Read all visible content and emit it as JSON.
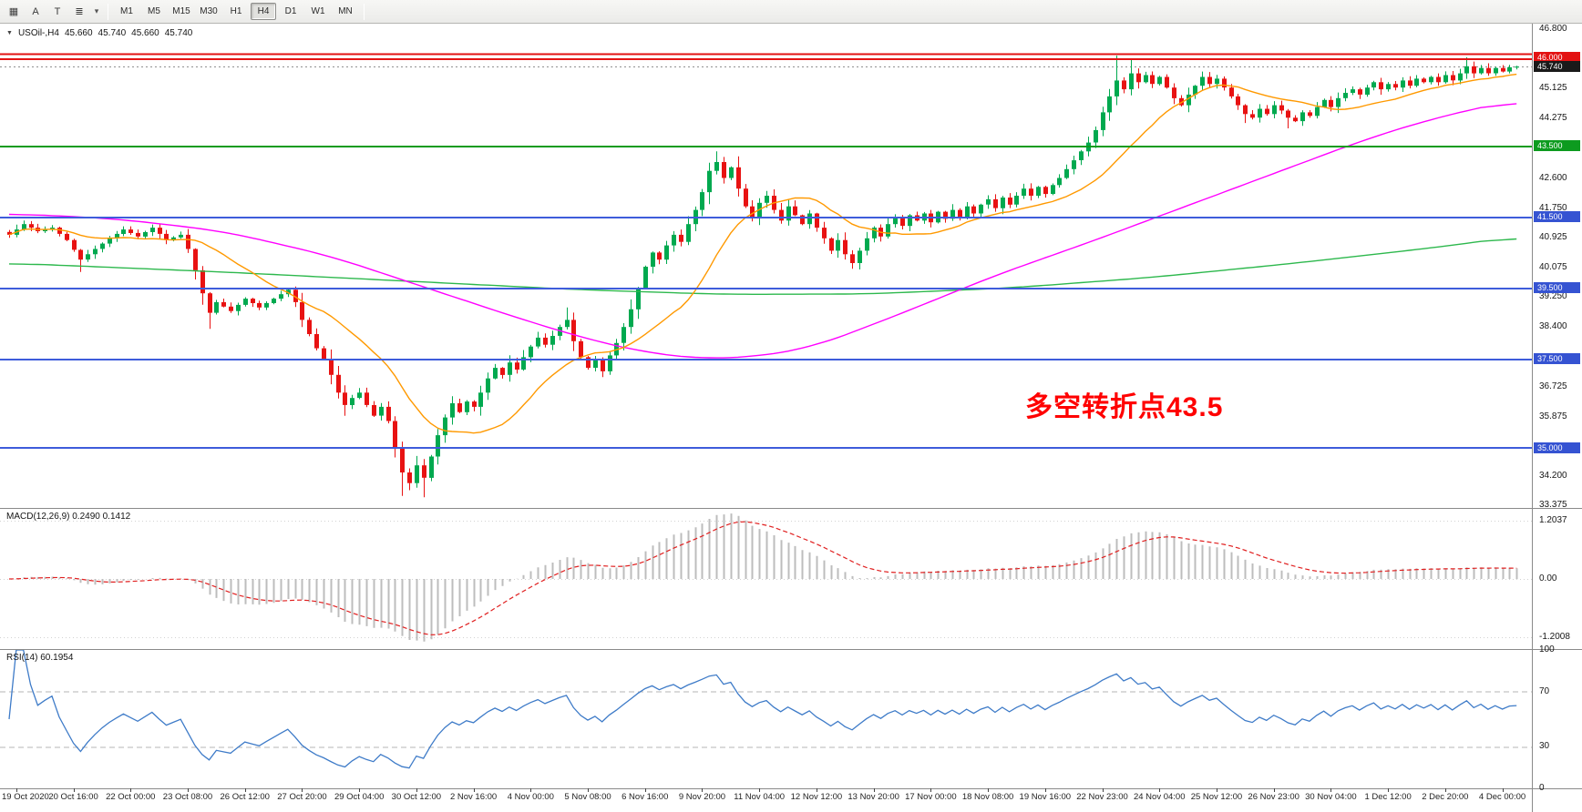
{
  "toolbar": {
    "icon_buttons": [
      {
        "name": "grid-dots-icon",
        "glyph": "▦"
      },
      {
        "name": "label-tool-icon",
        "glyph": "A"
      },
      {
        "name": "text-tool-icon",
        "glyph": "T"
      },
      {
        "name": "objects-dropdown-icon",
        "glyph": "≣"
      },
      {
        "name": "dropdown-caret-icon",
        "glyph": "▾"
      }
    ],
    "timeframes": [
      "M1",
      "M5",
      "M15",
      "M30",
      "H1",
      "H4",
      "D1",
      "W1",
      "MN"
    ],
    "active_timeframe": "H4"
  },
  "chart": {
    "title": {
      "collapse_icon": "▼",
      "symbol": "USOil-,H4",
      "open": "45.660",
      "high": "45.740",
      "low": "45.660",
      "close": "45.740"
    },
    "annotation": {
      "text": "多空转折点43.5",
      "color": "#ff0000"
    },
    "price_axis": {
      "plain_labels": [
        {
          "text": "46.800",
          "price": 46.8
        },
        {
          "text": "45.125",
          "price": 45.125
        },
        {
          "text": "44.275",
          "price": 44.275
        },
        {
          "text": "42.600",
          "price": 42.6
        },
        {
          "text": "41.750",
          "price": 41.75
        },
        {
          "text": "40.925",
          "price": 40.925
        },
        {
          "text": "40.075",
          "price": 40.075
        },
        {
          "text": "39.250",
          "price": 39.25
        },
        {
          "text": "38.400",
          "price": 38.4
        },
        {
          "text": "36.725",
          "price": 36.725
        },
        {
          "text": "35.875",
          "price": 35.875
        },
        {
          "text": "34.200",
          "price": 34.2
        },
        {
          "text": "33.375",
          "price": 33.375
        }
      ],
      "badges": [
        {
          "text": "46.000",
          "price": 46.0,
          "bg": "#e31212"
        },
        {
          "text": "45.740",
          "price": 45.74,
          "bg": "#1a1a1a"
        },
        {
          "text": "43.500",
          "price": 43.5,
          "bg": "#0d9b1f"
        },
        {
          "text": "41.500",
          "price": 41.5,
          "bg": "#3553d2"
        },
        {
          "text": "39.500",
          "price": 39.5,
          "bg": "#3553d2"
        },
        {
          "text": "37.500",
          "price": 37.5,
          "bg": "#3553d2"
        },
        {
          "text": "35.000",
          "price": 35.0,
          "bg": "#3553d2"
        }
      ]
    },
    "level_lines": [
      {
        "price": 46.1,
        "color": "#e31212",
        "width": 2
      },
      {
        "price": 45.96,
        "color": "#e31212",
        "width": 2
      },
      {
        "price": 43.5,
        "color": "#0d9b1f",
        "width": 2
      },
      {
        "price": 41.5,
        "color": "#3e5cdb",
        "width": 2
      },
      {
        "price": 39.5,
        "color": "#3e5cdb",
        "width": 2
      },
      {
        "price": 37.5,
        "color": "#3e5cdb",
        "width": 2
      },
      {
        "price": 35.0,
        "color": "#3e5cdb",
        "width": 2
      }
    ],
    "current_price_line": {
      "price": 45.74,
      "color": "#909090"
    }
  },
  "macd_panel": {
    "label": "MACD(12,26,9) 0.2490 0.1412",
    "ticks": [
      {
        "text": "1.2037",
        "value": 1.2037
      },
      {
        "text": "0.00",
        "value": 0
      },
      {
        "text": "-1.2008",
        "value": -1.2008
      }
    ],
    "ylim": [
      -1.45,
      1.45
    ]
  },
  "rsi_panel": {
    "label": "RSI(14) 60.1954",
    "ticks": [
      {
        "text": "100",
        "value": 100
      },
      {
        "text": "70",
        "value": 70
      },
      {
        "text": "30",
        "value": 30
      },
      {
        "text": "0",
        "value": 0
      }
    ],
    "levels": [
      70,
      30
    ],
    "ylim": [
      0,
      100
    ]
  },
  "time_axis": [
    "19 Oct 2020",
    "20 Oct 16:00",
    "22 Oct 00:00",
    "23 Oct 08:00",
    "26 Oct 12:00",
    "27 Oct 20:00",
    "29 Oct 04:00",
    "30 Oct 12:00",
    "2 Nov 16:00",
    "4 Nov 00:00",
    "5 Nov 08:00",
    "6 Nov 16:00",
    "9 Nov 20:00",
    "11 Nov 04:00",
    "12 Nov 12:00",
    "13 Nov 20:00",
    "17 Nov 00:00",
    "18 Nov 08:00",
    "19 Nov 16:00",
    "22 Nov 23:00",
    "24 Nov 04:00",
    "25 Nov 12:00",
    "26 Nov 23:00",
    "30 Nov 04:00",
    "1 Dec 12:00",
    "2 Dec 20:00",
    "4 Dec 00:00"
  ],
  "chart_data": {
    "type": "candlestick",
    "symbol": "USOil-",
    "timeframe": "H4",
    "ylim": [
      33.3,
      46.95
    ],
    "bars": 212,
    "up_color": "#00a94f",
    "down_color": "#e81212",
    "close_anchors": [
      [
        0,
        41.0
      ],
      [
        2,
        41.3
      ],
      [
        4,
        41.1
      ],
      [
        6,
        41.2
      ],
      [
        8,
        40.85
      ],
      [
        10,
        40.3
      ],
      [
        12,
        40.6
      ],
      [
        14,
        40.9
      ],
      [
        16,
        41.15
      ],
      [
        18,
        40.95
      ],
      [
        20,
        41.2
      ],
      [
        22,
        40.85
      ],
      [
        24,
        41.0
      ],
      [
        25,
        40.6
      ],
      [
        26,
        40.0
      ],
      [
        27,
        39.35
      ],
      [
        28,
        38.8
      ],
      [
        29,
        39.1
      ],
      [
        31,
        38.85
      ],
      [
        33,
        39.2
      ],
      [
        35,
        38.95
      ],
      [
        37,
        39.2
      ],
      [
        39,
        39.45
      ],
      [
        40,
        39.1
      ],
      [
        41,
        38.6
      ],
      [
        42,
        38.2
      ],
      [
        43,
        37.8
      ],
      [
        44,
        37.5
      ],
      [
        45,
        37.05
      ],
      [
        46,
        36.55
      ],
      [
        47,
        36.2
      ],
      [
        48,
        36.4
      ],
      [
        49,
        36.55
      ],
      [
        50,
        36.2
      ],
      [
        51,
        35.9
      ],
      [
        52,
        36.15
      ],
      [
        53,
        35.75
      ],
      [
        54,
        35.0
      ],
      [
        55,
        34.3
      ],
      [
        56,
        34.0
      ],
      [
        57,
        34.5
      ],
      [
        58,
        34.15
      ],
      [
        59,
        34.75
      ],
      [
        60,
        35.35
      ],
      [
        61,
        35.85
      ],
      [
        62,
        36.25
      ],
      [
        63,
        36.0
      ],
      [
        64,
        36.3
      ],
      [
        65,
        36.15
      ],
      [
        66,
        36.55
      ],
      [
        67,
        36.95
      ],
      [
        68,
        37.25
      ],
      [
        69,
        37.05
      ],
      [
        70,
        37.4
      ],
      [
        71,
        37.2
      ],
      [
        72,
        37.55
      ],
      [
        73,
        37.85
      ],
      [
        74,
        38.1
      ],
      [
        75,
        37.9
      ],
      [
        76,
        38.15
      ],
      [
        77,
        38.4
      ],
      [
        78,
        38.6
      ],
      [
        79,
        38.0
      ],
      [
        80,
        37.55
      ],
      [
        81,
        37.25
      ],
      [
        82,
        37.5
      ],
      [
        83,
        37.15
      ],
      [
        84,
        37.6
      ],
      [
        85,
        37.95
      ],
      [
        86,
        38.4
      ],
      [
        87,
        38.9
      ],
      [
        88,
        39.5
      ],
      [
        89,
        40.1
      ],
      [
        90,
        40.5
      ],
      [
        91,
        40.3
      ],
      [
        92,
        40.7
      ],
      [
        93,
        41.0
      ],
      [
        94,
        40.8
      ],
      [
        95,
        41.3
      ],
      [
        96,
        41.7
      ],
      [
        97,
        42.2
      ],
      [
        98,
        42.8
      ],
      [
        99,
        43.05
      ],
      [
        100,
        42.6
      ],
      [
        101,
        42.9
      ],
      [
        102,
        42.3
      ],
      [
        103,
        41.8
      ],
      [
        104,
        41.5
      ],
      [
        105,
        41.9
      ],
      [
        106,
        42.1
      ],
      [
        107,
        41.7
      ],
      [
        108,
        41.4
      ],
      [
        109,
        41.8
      ],
      [
        110,
        41.55
      ],
      [
        111,
        41.3
      ],
      [
        112,
        41.6
      ],
      [
        113,
        41.2
      ],
      [
        114,
        40.9
      ],
      [
        115,
        40.55
      ],
      [
        116,
        40.85
      ],
      [
        117,
        40.45
      ],
      [
        118,
        40.2
      ],
      [
        119,
        40.55
      ],
      [
        120,
        40.9
      ],
      [
        121,
        41.2
      ],
      [
        122,
        40.95
      ],
      [
        123,
        41.3
      ],
      [
        124,
        41.5
      ],
      [
        125,
        41.25
      ],
      [
        126,
        41.55
      ],
      [
        127,
        41.4
      ],
      [
        128,
        41.6
      ],
      [
        129,
        41.35
      ],
      [
        130,
        41.65
      ],
      [
        131,
        41.45
      ],
      [
        132,
        41.7
      ],
      [
        133,
        41.5
      ],
      [
        134,
        41.8
      ],
      [
        135,
        41.6
      ],
      [
        136,
        41.85
      ],
      [
        137,
        42.0
      ],
      [
        138,
        41.75
      ],
      [
        139,
        42.05
      ],
      [
        140,
        41.85
      ],
      [
        141,
        42.1
      ],
      [
        142,
        42.3
      ],
      [
        143,
        42.1
      ],
      [
        144,
        42.35
      ],
      [
        145,
        42.15
      ],
      [
        146,
        42.4
      ],
      [
        147,
        42.6
      ],
      [
        148,
        42.85
      ],
      [
        149,
        43.1
      ],
      [
        150,
        43.35
      ],
      [
        151,
        43.6
      ],
      [
        152,
        43.95
      ],
      [
        153,
        44.45
      ],
      [
        154,
        44.9
      ],
      [
        155,
        45.35
      ],
      [
        156,
        45.1
      ],
      [
        157,
        45.55
      ],
      [
        158,
        45.3
      ],
      [
        159,
        45.5
      ],
      [
        160,
        45.25
      ],
      [
        161,
        45.45
      ],
      [
        162,
        45.15
      ],
      [
        163,
        44.85
      ],
      [
        164,
        44.65
      ],
      [
        165,
        44.95
      ],
      [
        166,
        45.2
      ],
      [
        167,
        45.45
      ],
      [
        168,
        45.25
      ],
      [
        169,
        45.4
      ],
      [
        170,
        45.15
      ],
      [
        171,
        44.9
      ],
      [
        172,
        44.65
      ],
      [
        173,
        44.4
      ],
      [
        174,
        44.3
      ],
      [
        175,
        44.55
      ],
      [
        176,
        44.4
      ],
      [
        177,
        44.65
      ],
      [
        178,
        44.5
      ],
      [
        179,
        44.3
      ],
      [
        180,
        44.2
      ],
      [
        181,
        44.45
      ],
      [
        182,
        44.35
      ],
      [
        183,
        44.6
      ],
      [
        184,
        44.8
      ],
      [
        185,
        44.6
      ],
      [
        186,
        44.85
      ],
      [
        187,
        45.0
      ],
      [
        188,
        45.1
      ],
      [
        189,
        44.95
      ],
      [
        190,
        45.15
      ],
      [
        191,
        45.3
      ],
      [
        192,
        45.1
      ],
      [
        193,
        45.25
      ],
      [
        194,
        45.15
      ],
      [
        195,
        45.35
      ],
      [
        196,
        45.2
      ],
      [
        197,
        45.4
      ],
      [
        198,
        45.3
      ],
      [
        199,
        45.45
      ],
      [
        200,
        45.3
      ],
      [
        201,
        45.5
      ],
      [
        202,
        45.35
      ],
      [
        203,
        45.55
      ],
      [
        204,
        45.75
      ],
      [
        205,
        45.55
      ],
      [
        206,
        45.7
      ],
      [
        207,
        45.55
      ],
      [
        208,
        45.7
      ],
      [
        209,
        45.6
      ],
      [
        210,
        45.72
      ],
      [
        211,
        45.74
      ]
    ],
    "wick_overrides": {
      "10": [
        null,
        39.95
      ],
      "28": [
        null,
        38.35
      ],
      "47": [
        null,
        35.9
      ],
      "55": [
        null,
        33.64
      ],
      "58": [
        null,
        33.6
      ],
      "62": [
        36.45,
        null
      ],
      "78": [
        38.95,
        null
      ],
      "99": [
        43.35,
        null
      ],
      "155": [
        46.05,
        null
      ],
      "157": [
        45.95,
        null
      ],
      "173": [
        null,
        44.15
      ],
      "179": [
        null,
        44.0
      ],
      "204": [
        46.0,
        null
      ]
    },
    "moving_averages": [
      {
        "name": "ma-fast",
        "type": "sma",
        "period": 16,
        "color": "#ff9900"
      },
      {
        "name": "ma-medium",
        "type": "anchors",
        "color": "#ff00ff",
        "anchors": [
          [
            0,
            41.6
          ],
          [
            15,
            41.45
          ],
          [
            30,
            41.1
          ],
          [
            45,
            40.4
          ],
          [
            60,
            39.4
          ],
          [
            72,
            38.6
          ],
          [
            82,
            38.0
          ],
          [
            90,
            37.65
          ],
          [
            97,
            37.5
          ],
          [
            104,
            37.55
          ],
          [
            112,
            37.8
          ],
          [
            120,
            38.4
          ],
          [
            127,
            38.95
          ],
          [
            133,
            39.45
          ],
          [
            140,
            40.0
          ],
          [
            150,
            40.7
          ],
          [
            158,
            41.3
          ],
          [
            166,
            41.9
          ],
          [
            174,
            42.5
          ],
          [
            182,
            43.1
          ],
          [
            190,
            43.7
          ],
          [
            198,
            44.2
          ],
          [
            205,
            44.55
          ],
          [
            211,
            44.8
          ]
        ]
      },
      {
        "name": "ma-slow",
        "type": "anchors",
        "color": "#2db84d",
        "anchors": [
          [
            0,
            40.2
          ],
          [
            30,
            39.95
          ],
          [
            55,
            39.7
          ],
          [
            80,
            39.45
          ],
          [
            100,
            39.32
          ],
          [
            120,
            39.33
          ],
          [
            140,
            39.5
          ],
          [
            160,
            39.8
          ],
          [
            180,
            40.2
          ],
          [
            200,
            40.65
          ],
          [
            211,
            40.95
          ]
        ]
      }
    ],
    "macd": {
      "fast": 12,
      "slow": 26,
      "signal": 9,
      "histogram_color": "#bdbdbd",
      "signal_color": "#e02020",
      "value": 0.249,
      "signal_value": 0.1412
    },
    "rsi": {
      "period": 14,
      "color": "#3e7bc8",
      "value": 60.1954
    }
  }
}
